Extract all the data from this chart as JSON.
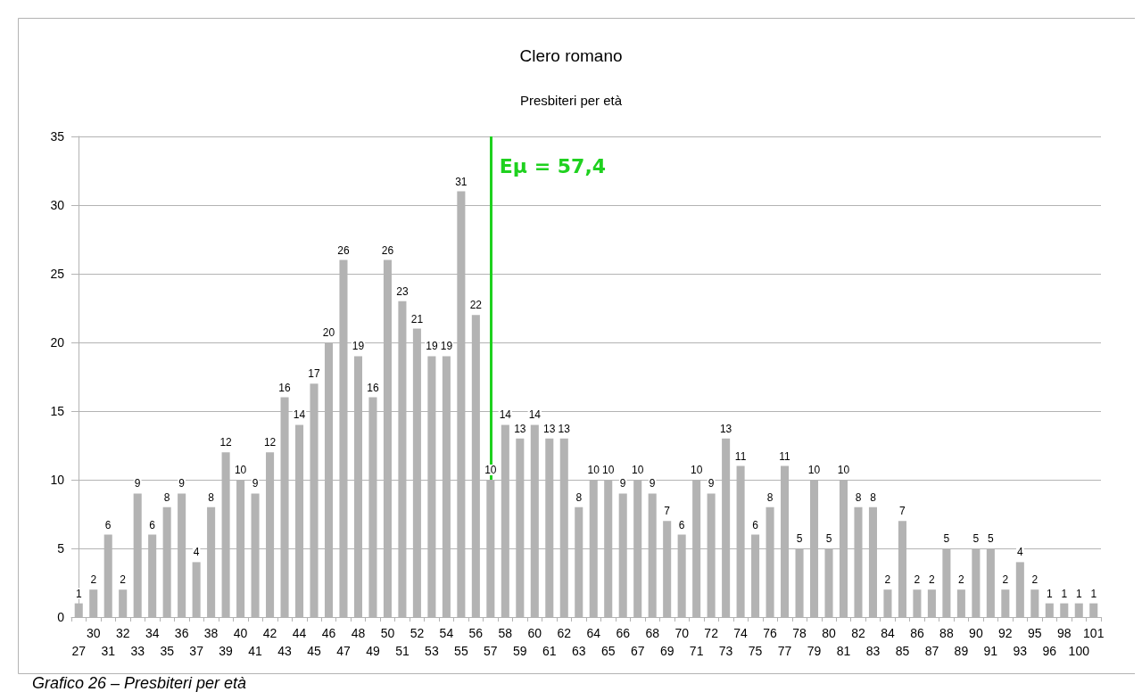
{
  "chart_data": {
    "type": "bar",
    "title": "Clero romano",
    "subtitle": "Presbiteri per età",
    "annotations": [
      "Grafico 26 – Presbiteri per età"
    ],
    "categories": [
      "27",
      "30",
      "31",
      "32",
      "33",
      "34",
      "35",
      "36",
      "37",
      "38",
      "39",
      "40",
      "41",
      "42",
      "43",
      "44",
      "45",
      "46",
      "47",
      "48",
      "49",
      "50",
      "51",
      "52",
      "53",
      "54",
      "55",
      "56",
      "57",
      "58",
      "59",
      "60",
      "61",
      "62",
      "63",
      "64",
      "65",
      "66",
      "67",
      "68",
      "69",
      "70",
      "71",
      "72",
      "73",
      "74",
      "75",
      "76",
      "77",
      "78",
      "79",
      "80",
      "81",
      "82",
      "83",
      "84",
      "85",
      "86",
      "87",
      "88",
      "89",
      "90",
      "91",
      "92",
      "93",
      "95",
      "96",
      "98",
      "100",
      "101"
    ],
    "values": [
      1,
      2,
      6,
      2,
      9,
      6,
      8,
      9,
      4,
      8,
      12,
      10,
      9,
      12,
      16,
      14,
      17,
      20,
      26,
      19,
      16,
      26,
      23,
      21,
      19,
      19,
      31,
      22,
      10,
      14,
      13,
      14,
      13,
      13,
      8,
      10,
      10,
      9,
      10,
      9,
      7,
      6,
      10,
      9,
      13,
      11,
      6,
      8,
      11,
      5,
      10,
      5,
      10,
      8,
      8,
      2,
      7,
      2,
      2,
      5,
      2,
      5,
      5,
      2,
      4,
      2,
      1,
      1,
      1,
      1
    ],
    "color": "#b3b3b3",
    "ylim": [
      0,
      35
    ],
    "yticks": [
      0,
      5,
      10,
      15,
      20,
      25,
      30,
      35
    ],
    "grid": "y",
    "data_labels": true,
    "ref_lines": [
      {
        "axis": "x",
        "value": "57",
        "label": "Eμ = 57,4",
        "color": "#1fd11f"
      }
    ]
  }
}
